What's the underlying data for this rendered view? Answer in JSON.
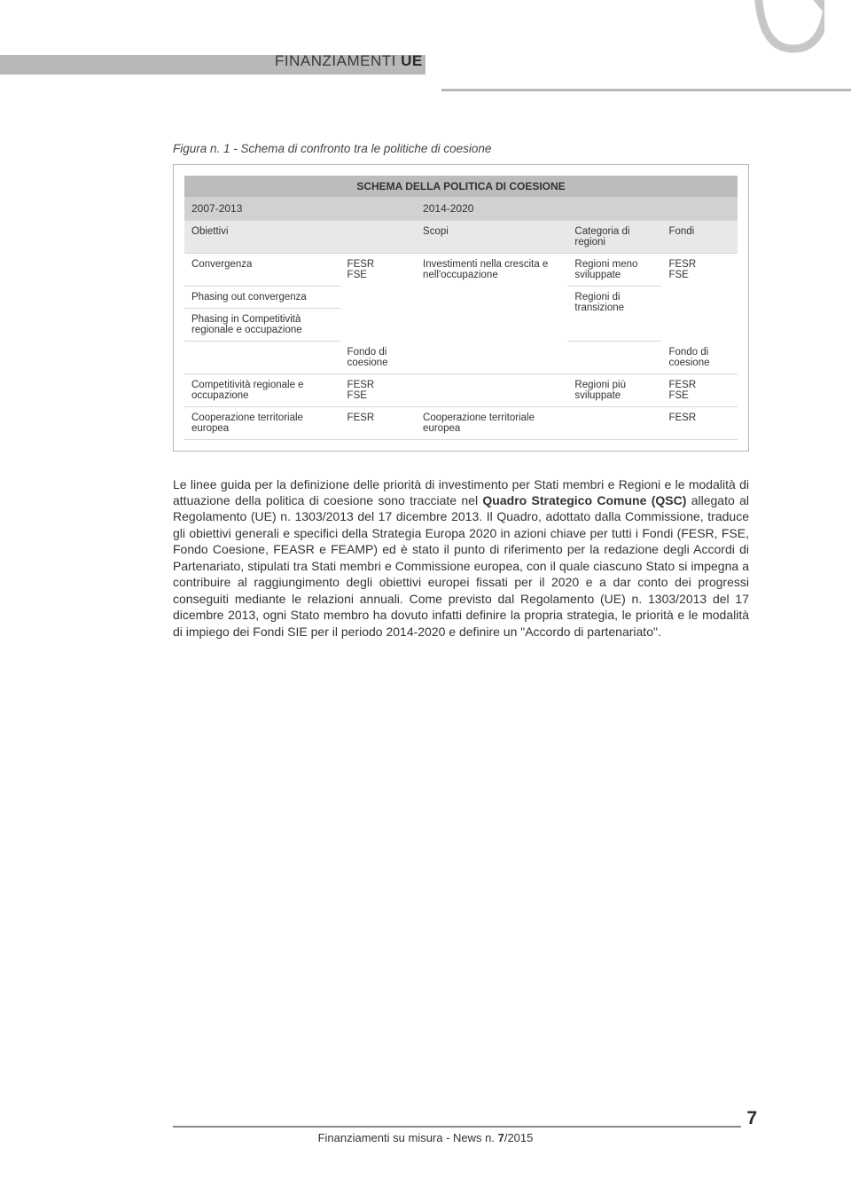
{
  "header": {
    "title_light": "FINANZIAMENTI",
    "title_bold": "UE"
  },
  "corner_logo": {
    "stroke": "#c8c7c5",
    "stroke_width": 9
  },
  "figure_caption": "Figura n. 1 - Schema di confronto tra le politiche di coesione",
  "schema": {
    "title": "SCHEMA DELLA POLITICA DI COESIONE",
    "period_left": "2007-2013",
    "period_right": "2014-2020",
    "sub_left_1": "Obiettivi",
    "sub_left_2": "",
    "sub_right_1": "Scopi",
    "sub_right_2": "Categoria di regioni",
    "sub_right_3": "Fondi",
    "rows": {
      "r1c1": "Convergenza",
      "r1c2": "FESR\nFSE",
      "r1c3": "Investimenti nella crescita e nell'occupazione",
      "r1c4": "Regioni meno sviluppate",
      "r1c5": "FESR\nFSE",
      "r2c1": "Phasing out convergenza",
      "r2c4": "Regioni di transizione",
      "r3c1": "Phasing in Competitività regionale e occupazione",
      "r4c2": "Fondo di coesione",
      "r4c5": "Fondo di coesione",
      "r5c1": "Competitività regionale e occupazione",
      "r5c2": "FESR\nFSE",
      "r5c4": "Regioni più sviluppate",
      "r5c5": "FESR\nFSE",
      "r6c1": "Cooperazione territoriale europea",
      "r6c2": "FESR",
      "r6c3": "Cooperazione territoriale europea",
      "r6c5": "FESR"
    }
  },
  "body_text": "Le linee guida per la definizione delle priorità di investimento per Stati membri e Regioni e le modalità di attuazione della politica di coesione sono tracciate nel <b>Quadro Strategico Comune (QSC)</b> allegato al Regolamento (UE) n. 1303/2013 del 17 dicembre 2013. Il Quadro, adottato dalla Commissione, traduce gli obiettivi generali e specifici della Strategia Europa 2020 in azioni chiave per tutti i Fondi (FESR, FSE, Fondo Coesione, FEASR e FEAMP) ed è stato il punto di riferimento per la redazione degli Accordi di Partenariato, stipulati tra Stati membri e Commissione europea, con il quale ciascuno Stato si impegna a contribuire al raggiungimento degli obiettivi europei fissati per il 2020 e a dar conto dei progressi conseguiti mediante le relazioni annuali. Come previsto dal Regolamento (UE) n. 1303/2013 del 17 dicembre 2013, ogni Stato membro ha dovuto infatti definire la propria strategia, le priorità e le modalità di impiego dei Fondi SIE per il periodo 2014-2020 e definire un \"Accordo di partenariato\".",
  "footer": {
    "text_light": "Finanziamenti su misura - News n. ",
    "text_bold": "7",
    "text_after": "/2015",
    "page_number": "7"
  },
  "colors": {
    "header_bar": "#b9b8b6",
    "table_header": "#bdbcba",
    "period_bg": "#d2d1cf",
    "subhead_bg": "#e9e8e6",
    "border": "#d8d8d6"
  }
}
